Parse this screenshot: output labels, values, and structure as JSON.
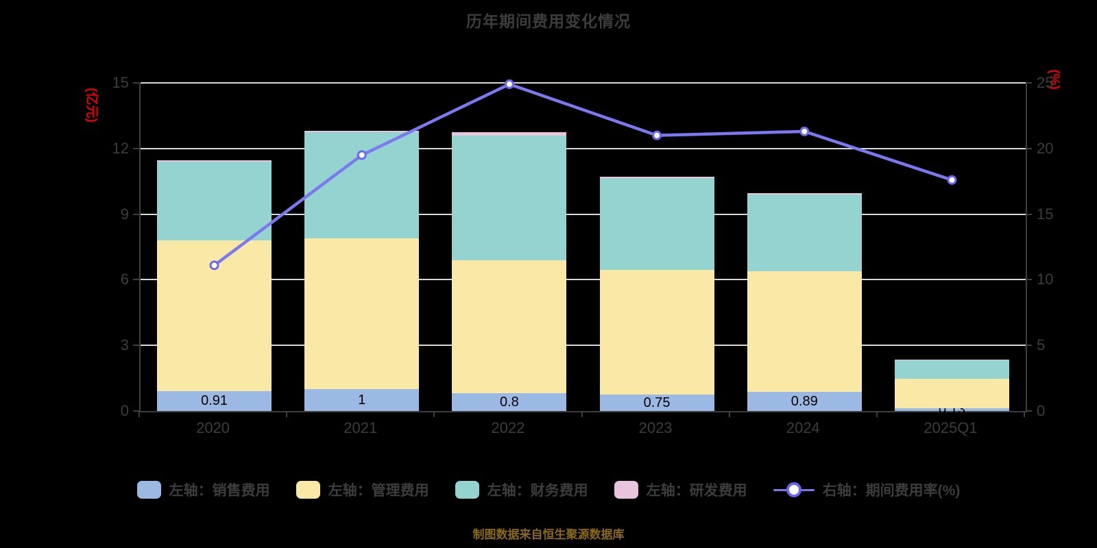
{
  "title": "历年期间费用变化情况",
  "footer": "制图数据来自恒生聚源数据库",
  "left_axis": {
    "title": "(亿元)",
    "ticks": [
      0,
      3,
      6,
      9,
      12,
      15
    ],
    "max": 15
  },
  "right_axis": {
    "title": "(%)",
    "ticks": [
      0,
      5,
      10,
      15,
      20,
      25
    ],
    "max": 25
  },
  "colors": {
    "background": "#000000",
    "title_text": "#3d3d3d",
    "axis_text": "#3d3d3d",
    "axis_line": "#3f3f3f",
    "gridline": "#d9d9d9",
    "axis_title_red": "#e60000",
    "footer_text": "#8a6a15",
    "bar_value_label": "#000000",
    "sales_blue": "#9cb9e4",
    "admin_yellow": "#f9e8a6",
    "finance_teal": "#95d3d0",
    "rd_pink": "#eac3de",
    "rate_line": "#7b78f0",
    "rate_marker_ring": "#6b68ee",
    "rate_marker_fill": "#ffffff"
  },
  "chart_data": {
    "type": "stacked-bar-with-line",
    "categories": [
      "2020",
      "2021",
      "2022",
      "2023",
      "2024",
      "2025Q1"
    ],
    "left_ylim": [
      0,
      15
    ],
    "right_ylim": [
      0,
      25
    ],
    "grid": "horizontal",
    "legend_position": "bottom",
    "series": [
      {
        "name": "左轴：销售费用",
        "axis": "left",
        "type": "bar",
        "color_key": "sales_blue",
        "values": [
          0.91,
          1,
          0.8,
          0.75,
          0.89,
          0.13
        ],
        "labels": [
          "0.91",
          "1",
          "0.8",
          "0.75",
          "0.89",
          "0.13"
        ]
      },
      {
        "name": "左轴：管理费用",
        "axis": "left",
        "type": "bar",
        "color_key": "admin_yellow",
        "values": [
          6.9,
          6.9,
          6.1,
          5.7,
          5.5,
          1.35
        ]
      },
      {
        "name": "左轴：财务费用",
        "axis": "left",
        "type": "bar",
        "color_key": "finance_teal",
        "values": [
          3.6,
          4.85,
          5.7,
          4.2,
          3.5,
          0.84
        ]
      },
      {
        "name": "左轴：研发费用",
        "axis": "left",
        "type": "bar",
        "color_key": "rd_pink",
        "values": [
          0.06,
          0.06,
          0.16,
          0.05,
          0.08,
          0.04
        ]
      },
      {
        "name": "右轴：期间费用率(%)",
        "axis": "right",
        "type": "line",
        "color_key": "rate_line",
        "values": [
          11.1,
          19.5,
          24.9,
          21.0,
          21.3,
          17.6
        ]
      }
    ]
  }
}
